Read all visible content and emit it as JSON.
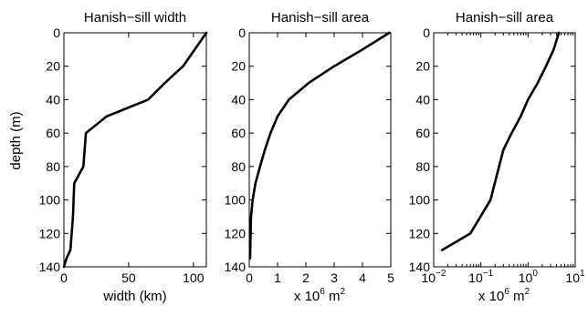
{
  "chart_data": [
    {
      "type": "line",
      "title": "Hanish−sill width",
      "xlabel": "width (km)",
      "ylabel": "depth (m)",
      "xlim": [
        0,
        110
      ],
      "ylim": [
        0,
        140
      ],
      "y_reversed": true,
      "x_scale": "linear",
      "xticks": [
        0,
        50,
        100
      ],
      "xtick_labels": [
        "0",
        "50",
        "100"
      ],
      "yticks": [
        0,
        20,
        40,
        60,
        80,
        100,
        120,
        140
      ],
      "ytick_labels": [
        "0",
        "20",
        "40",
        "60",
        "80",
        "100",
        "120",
        "140"
      ],
      "series": [
        {
          "x": [
            110,
            92,
            78,
            65,
            33,
            17,
            15,
            8,
            7,
            5,
            2,
            0
          ],
          "y": [
            0,
            20,
            30,
            40,
            50,
            60,
            80,
            90,
            110,
            130,
            135,
            140
          ]
        }
      ]
    },
    {
      "type": "line",
      "title": "Hanish−sill area",
      "xlabel_prefix": "x 10",
      "xlabel_exp": "6",
      "xlabel_suffix": " m",
      "xlabel_suffix_exp": "2",
      "xlim": [
        0,
        5
      ],
      "ylim": [
        0,
        140
      ],
      "y_reversed": true,
      "x_scale": "linear",
      "xticks": [
        0,
        1,
        2,
        3,
        4,
        5
      ],
      "xtick_labels": [
        "0",
        "1",
        "2",
        "3",
        "4",
        "5"
      ],
      "yticks": [
        0,
        20,
        40,
        60,
        80,
        100,
        120,
        140
      ],
      "ytick_labels": [
        "0",
        "20",
        "40",
        "60",
        "80",
        "100",
        "120",
        "140"
      ],
      "series": [
        {
          "x": [
            4.95,
            4.0,
            3.0,
            2.1,
            1.4,
            1.0,
            0.75,
            0.55,
            0.38,
            0.22,
            0.12,
            0.06,
            0.03
          ],
          "y": [
            0,
            10,
            20,
            30,
            40,
            50,
            60,
            70,
            80,
            90,
            100,
            110,
            135
          ]
        }
      ]
    },
    {
      "type": "line",
      "title": "Hanish−sill area",
      "xlabel_prefix": "x 10",
      "xlabel_exp": "6",
      "xlabel_suffix": " m",
      "xlabel_suffix_exp": "2",
      "xlim": [
        0.01,
        10
      ],
      "ylim": [
        0,
        140
      ],
      "y_reversed": true,
      "x_scale": "log",
      "xticks": [
        0.01,
        0.1,
        1,
        10
      ],
      "xtick_labels": [
        {
          "base": "10",
          "exp": "−2"
        },
        {
          "base": "10",
          "exp": "−1"
        },
        {
          "base": "10",
          "exp": "0"
        },
        {
          "base": "10",
          "exp": "1"
        }
      ],
      "yticks": [
        0,
        20,
        40,
        60,
        80,
        100,
        120,
        140
      ],
      "ytick_labels": [
        "0",
        "20",
        "40",
        "60",
        "80",
        "100",
        "120",
        "140"
      ],
      "series": [
        {
          "x": [
            4.5,
            3.5,
            2.4,
            1.6,
            1.0,
            0.7,
            0.45,
            0.3,
            0.16,
            0.06,
            0.015
          ],
          "y": [
            0,
            10,
            20,
            30,
            40,
            50,
            60,
            70,
            100,
            120,
            130
          ]
        }
      ]
    }
  ]
}
